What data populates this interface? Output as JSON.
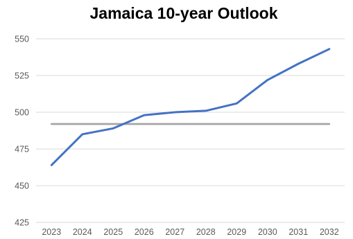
{
  "chart_data": {
    "type": "line",
    "title": "Jamaica 10-year Outlook",
    "xlabel": "",
    "ylabel": "",
    "categories": [
      "2023",
      "2024",
      "2025",
      "2026",
      "2027",
      "2028",
      "2029",
      "2030",
      "2031",
      "2032"
    ],
    "series": [
      {
        "color": "#4472c4",
        "values": [
          464,
          485,
          489,
          498,
          500,
          501,
          506,
          522,
          533,
          543
        ]
      },
      {
        "color": "#a5a5a5",
        "values": [
          492,
          492,
          492,
          492,
          492,
          492,
          492,
          492,
          492,
          492
        ]
      }
    ],
    "ylim": [
      425,
      550
    ],
    "yticks": [
      425,
      450,
      475,
      500,
      525,
      550
    ],
    "grid": true,
    "legend": "none"
  }
}
